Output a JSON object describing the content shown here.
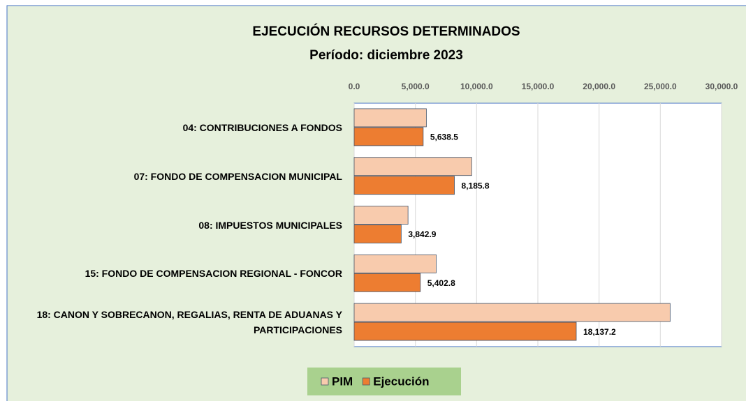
{
  "chart_data": {
    "type": "hbar",
    "title": "EJECUCIÓN RECURSOS DETERMINADOS",
    "subtitle": "Período: diciembre 2023",
    "categories": [
      "04: CONTRIBUCIONES A FONDOS",
      "07: FONDO DE COMPENSACION MUNICIPAL",
      "08: IMPUESTOS MUNICIPALES",
      "15: FONDO DE COMPENSACION REGIONAL - FONCOR",
      "18: CANON Y SOBRECANON, REGALIAS, RENTA DE ADUANAS Y PARTICIPACIONES"
    ],
    "series": [
      {
        "name": "PIM",
        "color": "#f8cbad",
        "values": [
          5900,
          9600,
          4400,
          6700,
          25800
        ]
      },
      {
        "name": "Ejecución",
        "color": "#ed7d31",
        "values": [
          5638.5,
          8185.8,
          3842.9,
          5402.8,
          18137.2
        ],
        "value_labels": [
          "5,638.5",
          "8,185.8",
          "3,842.9",
          "5,402.8",
          "18,137.2"
        ]
      }
    ],
    "xlim": [
      0,
      30000
    ],
    "xticks": [
      {
        "value": 0,
        "label": "0.0"
      },
      {
        "value": 5000,
        "label": "5,000.0"
      },
      {
        "value": 10000,
        "label": "10,000.0"
      },
      {
        "value": 15000,
        "label": "15,000.0"
      },
      {
        "value": 20000,
        "label": "20,000.0"
      },
      {
        "value": 25000,
        "label": "25,000.0"
      },
      {
        "value": 30000,
        "label": "30,000.0"
      }
    ],
    "grid": true,
    "legend": "bottom"
  }
}
